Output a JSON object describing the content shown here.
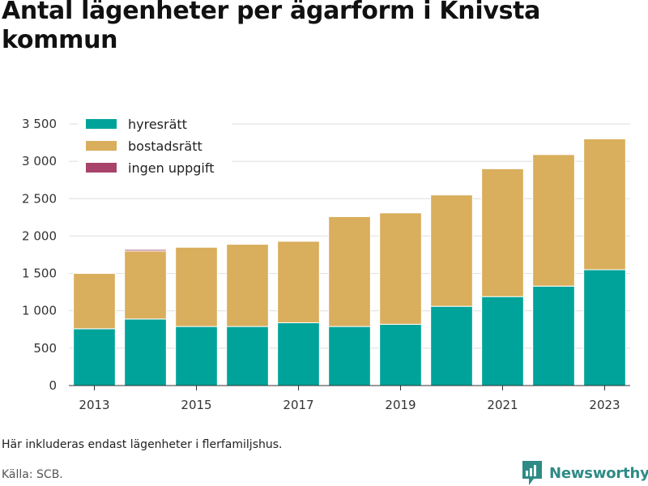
{
  "title": "Antal lägenheter per ägarform i Knivsta kommun",
  "note": "Här inkluderas endast lägenheter i flerfamiljshus.",
  "source": "Källa: SCB.",
  "brand": "Newsworthy",
  "chart_data": {
    "type": "bar",
    "stacked": true,
    "categories": [
      2013,
      2014,
      2015,
      2016,
      2017,
      2018,
      2019,
      2020,
      2021,
      2022,
      2023
    ],
    "series": [
      {
        "name": "hyresrätt",
        "color": "#00a39a",
        "values": [
          760,
          890,
          790,
          790,
          840,
          790,
          820,
          1060,
          1190,
          1330,
          1550
        ]
      },
      {
        "name": "bostadsrätt",
        "color": "#d9ae5c",
        "values": [
          740,
          910,
          1060,
          1100,
          1090,
          1470,
          1490,
          1490,
          1710,
          1760,
          1750
        ]
      },
      {
        "name": "ingen uppgift",
        "color": "#a8446b",
        "values": [
          0,
          20,
          0,
          0,
          0,
          0,
          0,
          0,
          0,
          0,
          0
        ]
      }
    ],
    "ylim": [
      0,
      3500
    ],
    "yticks": [
      0,
      500,
      1000,
      1500,
      2000,
      2500,
      3000,
      3500
    ],
    "ytick_labels": [
      "0",
      "500",
      "1 000",
      "1 500",
      "2 000",
      "2 500",
      "3 000",
      "3 500"
    ],
    "xticks": [
      2013,
      2015,
      2017,
      2019,
      2021,
      2023
    ],
    "grid": true,
    "legend": "top-left"
  }
}
